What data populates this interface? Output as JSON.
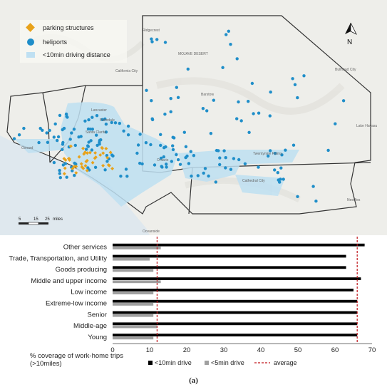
{
  "map": {
    "legend": [
      {
        "label": "parking structures",
        "color": "#e8a21a",
        "icon": "diamond-icon"
      },
      {
        "label": "heliports",
        "color": "#1f8ec9",
        "icon": "circle-icon"
      },
      {
        "label": "<10min driving distance",
        "color": "#bfe0f2",
        "icon": "square-icon"
      }
    ],
    "north_label": "N",
    "scale_labels": [
      "5",
      "15",
      "25",
      "miles"
    ],
    "place_labels": [
      "Ridgecrest",
      "MOJAVE DESERT",
      "California City",
      "Barstow",
      "Bullhead City",
      "Lancaster",
      "Palmdale",
      "Santa Clarita",
      "Oxnard",
      "Ontario",
      "Twentynine Palms",
      "Cathedral City",
      "Lake Havasu",
      "Oceanside",
      "Needles"
    ]
  },
  "chart_data": {
    "type": "bar",
    "categories": [
      "Other services",
      "Trade, Transportation, and Utility",
      "Goods producing",
      "Middle and upper income",
      "Low income",
      "Extreme-low income",
      "Senior",
      "Middle-age",
      "Young"
    ],
    "series": [
      {
        "name": "<10min drive",
        "values": [
          68,
          63,
          63,
          67,
          65,
          66,
          66,
          66,
          66
        ],
        "color": "#000000"
      },
      {
        "name": "<5min drive",
        "values": [
          13,
          10,
          11,
          13,
          11,
          11,
          11,
          12,
          11
        ],
        "color": "#a0a0a0"
      }
    ],
    "reference_line": {
      "name": "average",
      "values": [
        12,
        66
      ],
      "color": "#c0151b"
    },
    "xticks": [
      0,
      10,
      20,
      30,
      40,
      50,
      60,
      70
    ],
    "xlim": [
      0,
      70
    ],
    "xlabel": "% coverage of work-home trips (>10miles)"
  },
  "caption": "(a)"
}
